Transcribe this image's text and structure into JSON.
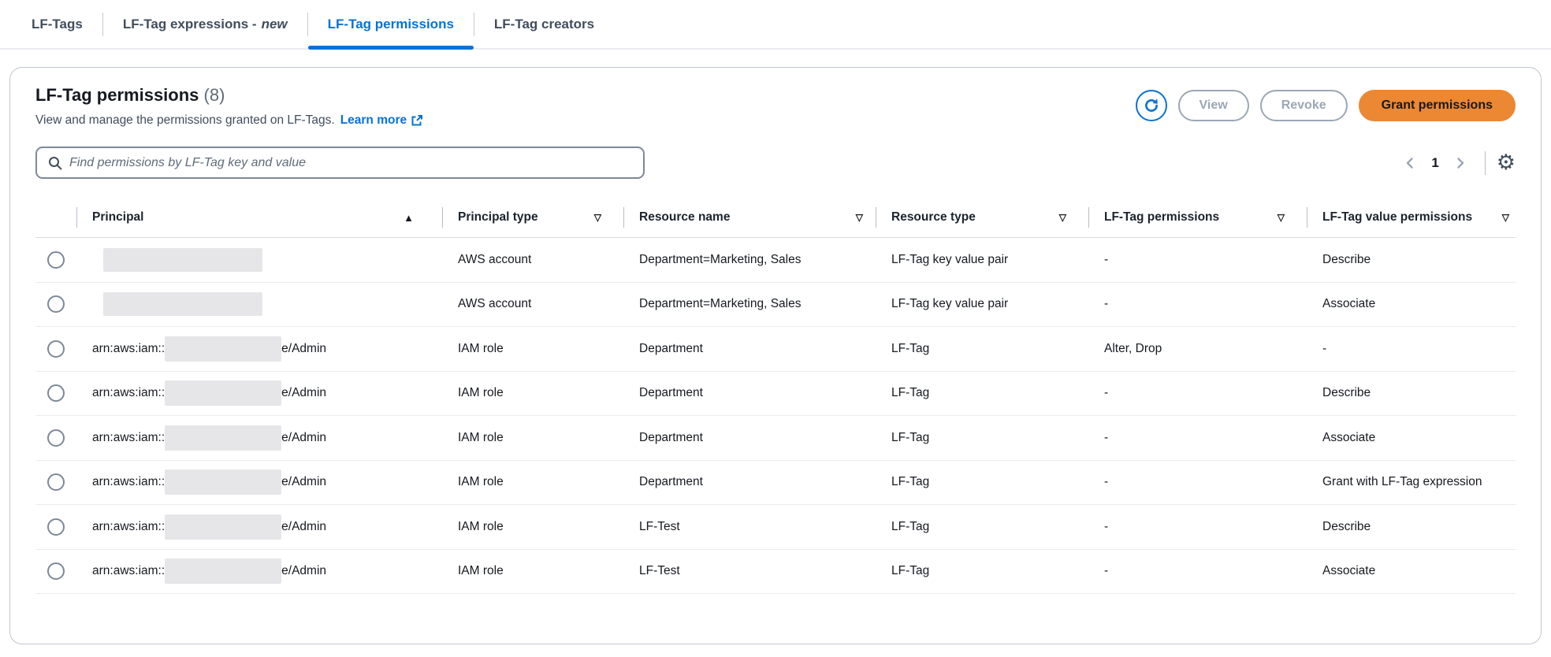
{
  "colors": {
    "accent": "#0972d3",
    "primary": "#ec8733",
    "disabled": "#9ba7b6",
    "redact": "#e6e6e9"
  },
  "tabs": [
    {
      "label": "LF-Tags",
      "active": false
    },
    {
      "label": "LF-Tag expressions -",
      "suffix": "new",
      "active": false
    },
    {
      "label": "LF-Tag permissions",
      "active": true
    },
    {
      "label": "LF-Tag creators",
      "active": false
    }
  ],
  "panel": {
    "title": "LF-Tag permissions",
    "count": "(8)",
    "description": "View and manage the permissions granted on LF-Tags.",
    "learn_more": "Learn more",
    "actions": {
      "view": "View",
      "revoke": "Revoke",
      "grant": "Grant permissions"
    },
    "search_placeholder": "Find permissions by LF-Tag key and value",
    "pagination": {
      "page": "1"
    }
  },
  "icons": {
    "gear": "⚙",
    "sort_asc": "▲",
    "sort_down": "▽"
  },
  "table": {
    "columns": [
      {
        "label": "Principal",
        "indicator": "sort_asc"
      },
      {
        "label": "Principal type",
        "indicator": "sort_down"
      },
      {
        "label": "Resource name",
        "indicator": "sort_down"
      },
      {
        "label": "Resource type",
        "indicator": "sort_down"
      },
      {
        "label": "LF-Tag permissions",
        "indicator": "sort_down"
      },
      {
        "label": "LF-Tag value permissions",
        "indicator": "sort_down"
      }
    ],
    "rows": [
      {
        "principal": {
          "prefix": "",
          "redact": "wide",
          "suffix": ""
        },
        "principal_type": "AWS account",
        "resource_name": "Department=Marketing, Sales",
        "resource_type": "LF-Tag key value pair",
        "lf_tag_permissions": "-",
        "lf_tag_value_permissions": "Describe"
      },
      {
        "principal": {
          "prefix": "",
          "redact": "wide",
          "suffix": ""
        },
        "principal_type": "AWS account",
        "resource_name": "Department=Marketing, Sales",
        "resource_type": "LF-Tag key value pair",
        "lf_tag_permissions": "-",
        "lf_tag_value_permissions": "Associate"
      },
      {
        "principal": {
          "prefix": "arn:aws:iam::",
          "redact": "narrow",
          "suffix": "e/Admin"
        },
        "principal_type": "IAM role",
        "resource_name": "Department",
        "resource_type": "LF-Tag",
        "lf_tag_permissions": "Alter, Drop",
        "lf_tag_value_permissions": "-"
      },
      {
        "principal": {
          "prefix": "arn:aws:iam::",
          "redact": "narrow",
          "suffix": "e/Admin"
        },
        "principal_type": "IAM role",
        "resource_name": "Department",
        "resource_type": "LF-Tag",
        "lf_tag_permissions": "-",
        "lf_tag_value_permissions": "Describe"
      },
      {
        "principal": {
          "prefix": "arn:aws:iam::",
          "redact": "narrow",
          "suffix": "e/Admin"
        },
        "principal_type": "IAM role",
        "resource_name": "Department",
        "resource_type": "LF-Tag",
        "lf_tag_permissions": "-",
        "lf_tag_value_permissions": "Associate"
      },
      {
        "principal": {
          "prefix": "arn:aws:iam::",
          "redact": "narrow",
          "suffix": "e/Admin"
        },
        "principal_type": "IAM role",
        "resource_name": "Department",
        "resource_type": "LF-Tag",
        "lf_tag_permissions": "-",
        "lf_tag_value_permissions": "Grant with LF-Tag expression"
      },
      {
        "principal": {
          "prefix": "arn:aws:iam::",
          "redact": "narrow",
          "suffix": "e/Admin"
        },
        "principal_type": "IAM role",
        "resource_name": "LF-Test",
        "resource_type": "LF-Tag",
        "lf_tag_permissions": "-",
        "lf_tag_value_permissions": "Describe"
      },
      {
        "principal": {
          "prefix": "arn:aws:iam::",
          "redact": "narrow",
          "suffix": "e/Admin"
        },
        "principal_type": "IAM role",
        "resource_name": "LF-Test",
        "resource_type": "LF-Tag",
        "lf_tag_permissions": "-",
        "lf_tag_value_permissions": "Associate"
      }
    ]
  }
}
